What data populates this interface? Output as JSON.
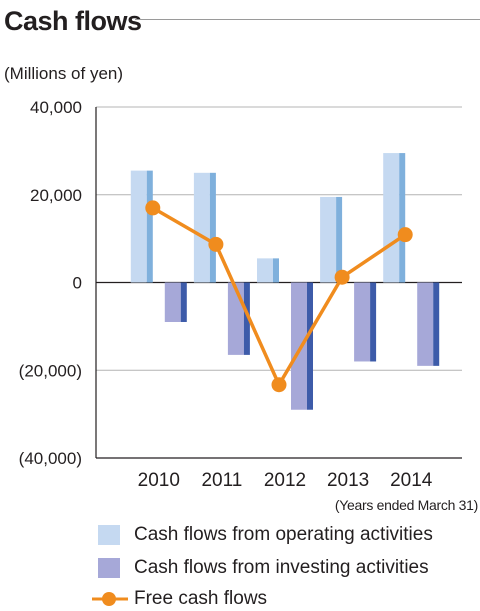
{
  "page": {
    "title": "Cash flows",
    "units": "(Millions of yen)",
    "x_note": "(Years ended March 31)"
  },
  "colors": {
    "operating_face": "#c5d9f1",
    "operating_side": "#7fb0dc",
    "investing_face": "#a6a8d8",
    "investing_side": "#3d5ba9",
    "free_cash_flow": "#f08c1e",
    "grid": "#b4b4b4",
    "axis": "#231f20"
  },
  "legend": [
    {
      "key": "operating",
      "label": "Cash flows from operating activities"
    },
    {
      "key": "investing",
      "label": "Cash flows from investing activities"
    },
    {
      "key": "free",
      "label": "Free cash flows"
    }
  ],
  "chart_data": {
    "type": "bar",
    "categories": [
      "2010",
      "2011",
      "2012",
      "2013",
      "2014"
    ],
    "series": [
      {
        "name": "Cash flows from operating activities",
        "kind": "bar",
        "values": [
          25500,
          25000,
          5500,
          19500,
          29500
        ]
      },
      {
        "name": "Cash flows from investing activities",
        "kind": "bar",
        "values": [
          -9000,
          -16500,
          -29000,
          -18000,
          -19000
        ]
      },
      {
        "name": "Free cash flows",
        "kind": "line",
        "values": [
          17000,
          8700,
          -23300,
          1200,
          10900
        ]
      }
    ],
    "ylim": [
      -40000,
      40000
    ],
    "yticks": [
      "(40,000)",
      "(20,000)",
      "0",
      "20,000",
      "40,000"
    ],
    "ytick_values": [
      -40000,
      -20000,
      0,
      20000,
      40000
    ],
    "grid": true,
    "legend_position": "bottom"
  }
}
